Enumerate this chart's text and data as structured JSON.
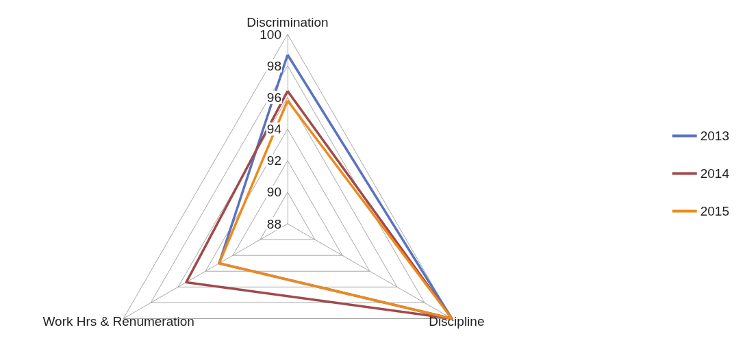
{
  "chart_data": {
    "type": "radar",
    "categories": [
      "Discrimination",
      "Discipline",
      "Work Hrs & Renumeration"
    ],
    "ylim": [
      88,
      100
    ],
    "yticks": [
      88,
      90,
      92,
      94,
      96,
      98,
      100
    ],
    "legend": "right",
    "series": [
      {
        "name": "2013",
        "color": "#5a73bf",
        "values": [
          98.7,
          100,
          93.0
        ]
      },
      {
        "name": "2014",
        "color": "#a14a4b",
        "values": [
          96.4,
          100,
          95.4
        ]
      },
      {
        "name": "2015",
        "color": "#ee8a1d",
        "values": [
          95.8,
          100,
          93.0
        ]
      }
    ]
  }
}
